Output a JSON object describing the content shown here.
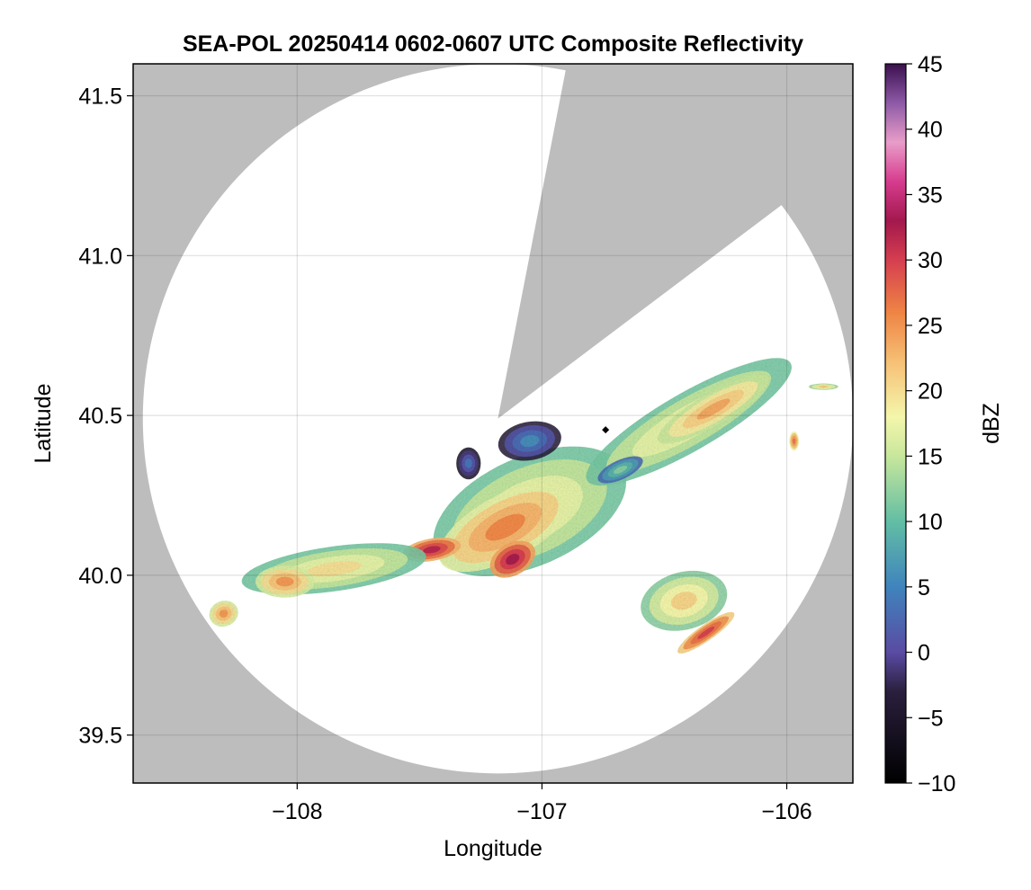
{
  "chart_data": {
    "type": "heatmap",
    "subtype": "radar composite reflectivity map",
    "title": "SEA-POL 20250414 0602-0607 UTC Composite Reflectivity",
    "xlabel": "Longitude",
    "ylabel": "Latitude",
    "xlim": [
      -108.67,
      -105.73
    ],
    "ylim": [
      39.35,
      41.6
    ],
    "xticks": [
      -108,
      -107,
      -106
    ],
    "xtick_labels": [
      "−108",
      "−107",
      "−106"
    ],
    "yticks": [
      39.5,
      40.0,
      40.5,
      41.0,
      41.5
    ],
    "ytick_labels": [
      "39.5",
      "40.0",
      "40.5",
      "41.0",
      "41.5"
    ],
    "grid": true,
    "background_color": "#bdbdbd",
    "radar": {
      "center_lon": -107.18,
      "center_lat": 40.49,
      "coverage_radius_deg_lat": 1.11,
      "blocked_sector_bearings_deg": [
        11,
        53
      ],
      "site_marker": {
        "lon": -106.74,
        "lat": 40.455
      }
    },
    "colorbar": {
      "label": "dBZ",
      "range": [
        -10,
        45
      ],
      "ticks": [
        -10,
        -5,
        0,
        5,
        10,
        15,
        20,
        25,
        30,
        35,
        40,
        45
      ],
      "tick_labels": [
        "−10",
        "−5",
        "0",
        "5",
        "10",
        "15",
        "20",
        "25",
        "30",
        "35",
        "40",
        "45"
      ],
      "colormap_stops": [
        {
          "v": -10,
          "c": "#000000"
        },
        {
          "v": -3,
          "c": "#2a1f3d"
        },
        {
          "v": 0,
          "c": "#5a4ba3"
        },
        {
          "v": 5,
          "c": "#3f84bd"
        },
        {
          "v": 10,
          "c": "#62bea4"
        },
        {
          "v": 15,
          "c": "#c8e79c"
        },
        {
          "v": 18,
          "c": "#f4f6ab"
        },
        {
          "v": 22,
          "c": "#f6c378"
        },
        {
          "v": 26,
          "c": "#ef8444"
        },
        {
          "v": 30,
          "c": "#d53e4f"
        },
        {
          "v": 33,
          "c": "#a3184e"
        },
        {
          "v": 36,
          "c": "#d63c8e"
        },
        {
          "v": 39,
          "c": "#e89dc9"
        },
        {
          "v": 42,
          "c": "#8e5aa6"
        },
        {
          "v": 45,
          "c": "#3b0f4f"
        }
      ]
    },
    "echo_regions": [
      {
        "name": "main band",
        "lon": -107.05,
        "lat": 40.2,
        "rx": 0.42,
        "ry": 0.17,
        "rot": -24,
        "dbz": 17
      },
      {
        "name": "main band core",
        "lon": -107.15,
        "lat": 40.15,
        "rx": 0.3,
        "ry": 0.1,
        "rot": -28,
        "dbz": 23
      },
      {
        "name": "core west",
        "lon": -107.45,
        "lat": 40.08,
        "rx": 0.12,
        "ry": 0.035,
        "rot": -10,
        "dbz": 29
      },
      {
        "name": "core south",
        "lon": -107.12,
        "lat": 40.05,
        "rx": 0.1,
        "ry": 0.05,
        "rot": -30,
        "dbz": 30
      },
      {
        "name": "western band",
        "lon": -107.85,
        "lat": 40.02,
        "rx": 0.38,
        "ry": 0.07,
        "rot": -8,
        "dbz": 17
      },
      {
        "name": "western cell",
        "lon": -108.05,
        "lat": 39.98,
        "rx": 0.12,
        "ry": 0.05,
        "rot": 0,
        "dbz": 22
      },
      {
        "name": "western small cell",
        "lon": -108.3,
        "lat": 39.88,
        "rx": 0.06,
        "ry": 0.04,
        "rot": -20,
        "dbz": 22
      },
      {
        "name": "northeast band",
        "lon": -106.4,
        "lat": 40.48,
        "rx": 0.48,
        "ry": 0.09,
        "rot": -30,
        "dbz": 17
      },
      {
        "name": "northeast core",
        "lon": -106.3,
        "lat": 40.52,
        "rx": 0.26,
        "ry": 0.05,
        "rot": -30,
        "dbz": 21
      },
      {
        "name": "low echo near radar",
        "lon": -107.05,
        "lat": 40.42,
        "rx": 0.13,
        "ry": 0.06,
        "rot": -10,
        "dbz": 3
      },
      {
        "name": "low echo west",
        "lon": -107.3,
        "lat": 40.35,
        "rx": 0.05,
        "ry": 0.05,
        "rot": 0,
        "dbz": 1
      },
      {
        "name": "low echo east",
        "lon": -106.68,
        "lat": 40.33,
        "rx": 0.1,
        "ry": 0.03,
        "rot": -25,
        "dbz": 9
      },
      {
        "name": "southeast cluster",
        "lon": -106.42,
        "lat": 39.92,
        "rx": 0.18,
        "ry": 0.09,
        "rot": -15,
        "dbz": 18
      },
      {
        "name": "southeast line",
        "lon": -106.33,
        "lat": 39.82,
        "rx": 0.14,
        "ry": 0.025,
        "rot": -35,
        "dbz": 27
      },
      {
        "name": "far east cell",
        "lon": -105.97,
        "lat": 40.42,
        "rx": 0.02,
        "ry": 0.03,
        "rot": 0,
        "dbz": 24
      },
      {
        "name": "eastern speck",
        "lon": -105.85,
        "lat": 40.59,
        "rx": 0.06,
        "ry": 0.01,
        "rot": 0,
        "dbz": 19
      }
    ]
  }
}
